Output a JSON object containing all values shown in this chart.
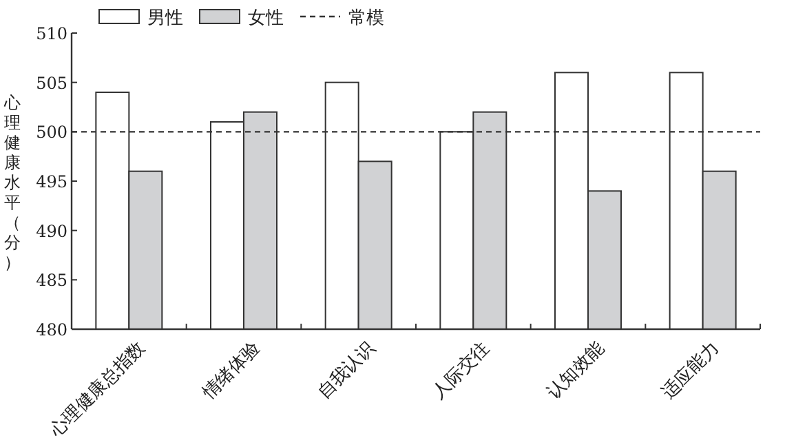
{
  "chart_data": {
    "type": "bar",
    "ylabel": "心理健康水平（分）",
    "categories": [
      "心理健康总指数",
      "情绪体验",
      "自我认识",
      "人际交往",
      "认知效能",
      "适应能力"
    ],
    "series": [
      {
        "name": "男性",
        "color": "#ffffff",
        "values": [
          504,
          501,
          505,
          500,
          506,
          506
        ]
      },
      {
        "name": "女性",
        "color": "#d1d2d4",
        "values": [
          496,
          502,
          497,
          502,
          494,
          496
        ]
      }
    ],
    "ylim": [
      480,
      510
    ],
    "yticks": [
      480,
      485,
      490,
      495,
      500,
      505,
      510
    ],
    "ref_lines": [
      {
        "axis": "y",
        "value": 500,
        "label": "常模",
        "line_style": "dashed"
      }
    ],
    "legend": "top left",
    "grid": false
  }
}
